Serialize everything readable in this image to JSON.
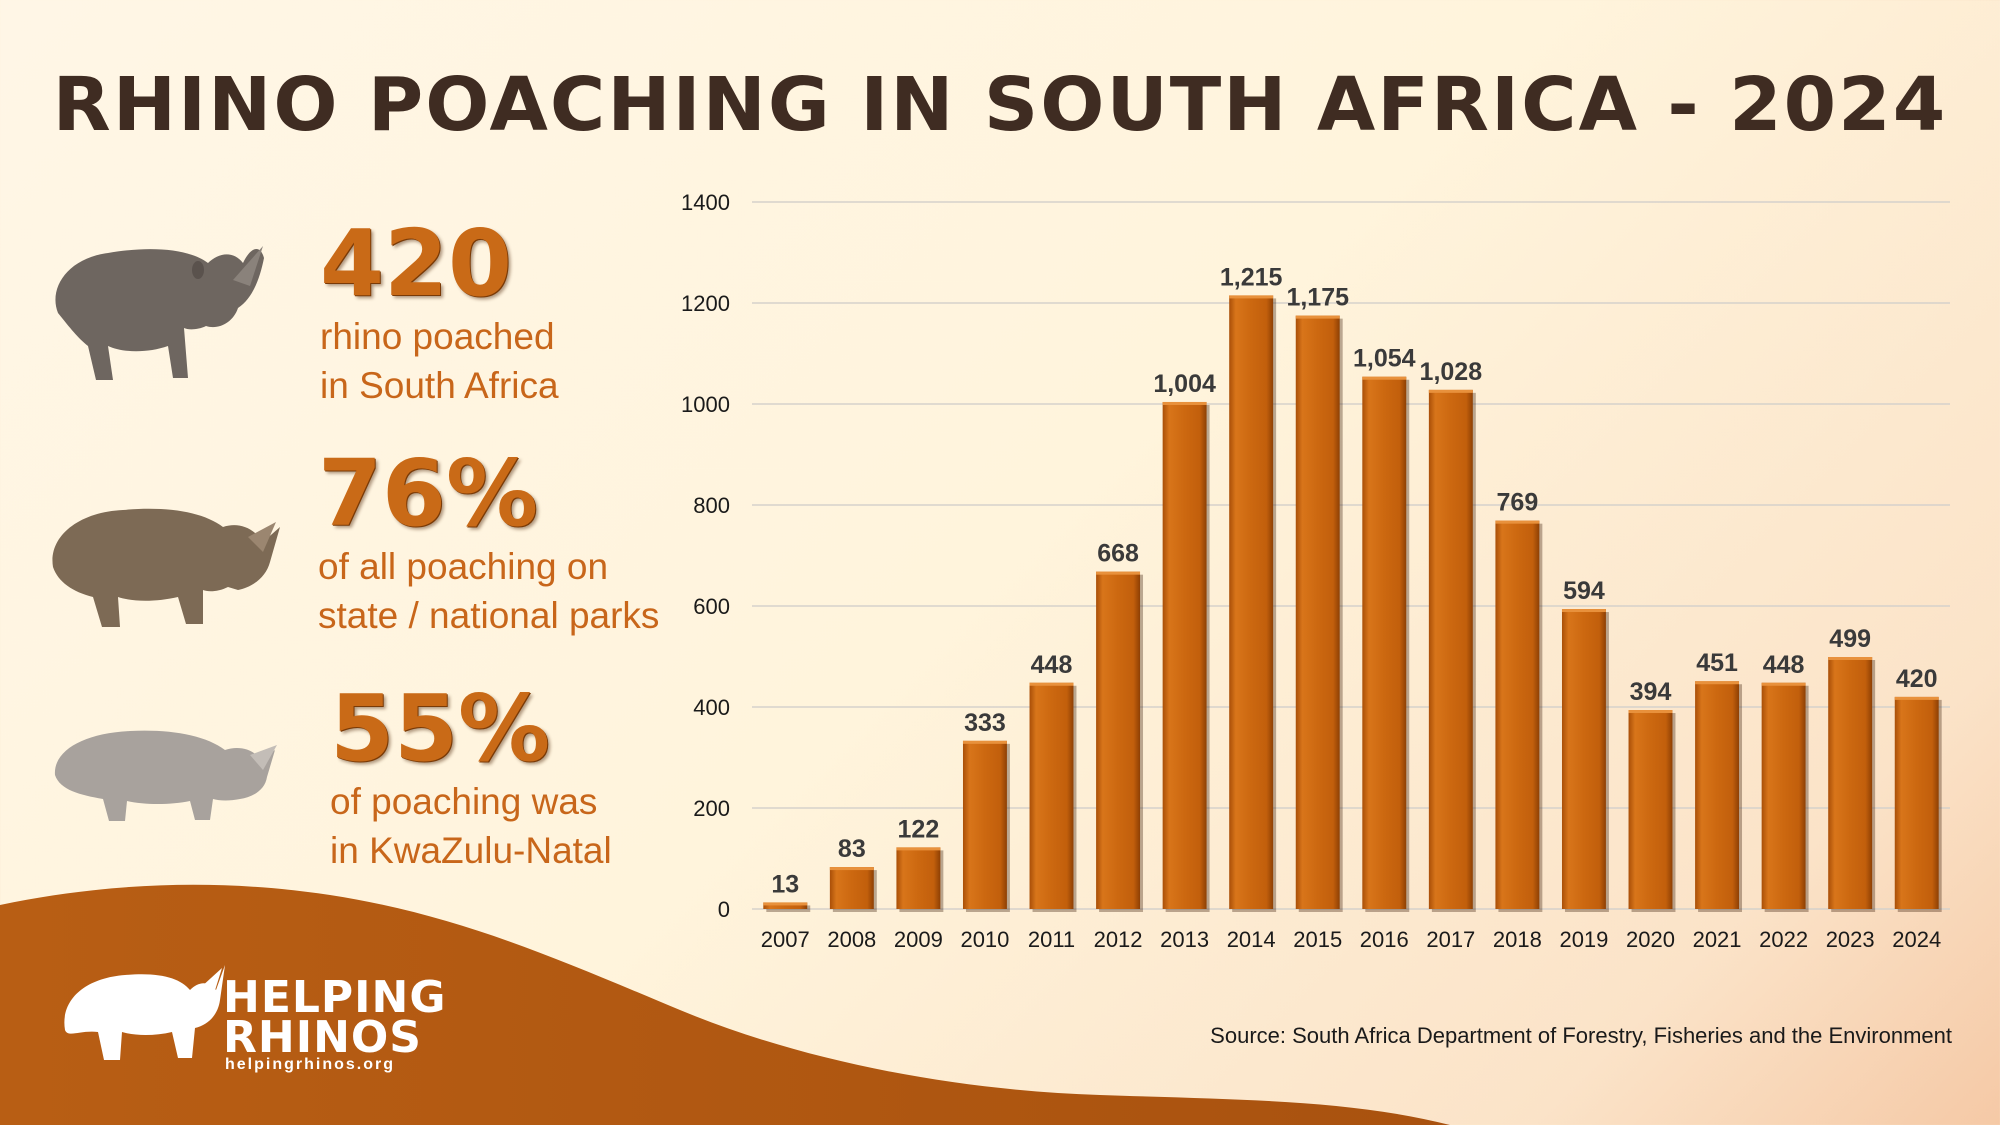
{
  "title": "RHINO POACHING IN SOUTH AFRICA - 2024",
  "stats": [
    {
      "value": "420",
      "line1": "rhino poached",
      "line2": "in South Africa",
      "icon": "black-rhino-icon"
    },
    {
      "value": "76%",
      "line1": "of all poaching on",
      "line2": "state / national parks",
      "icon": "white-rhino-icon"
    },
    {
      "value": "55%",
      "line1": "of poaching was",
      "line2": "in KwaZulu-Natal",
      "icon": "grey-rhino-icon"
    }
  ],
  "chart_data": {
    "type": "bar",
    "categories": [
      "2007",
      "2008",
      "2009",
      "2010",
      "2011",
      "2012",
      "2013",
      "2014",
      "2015",
      "2016",
      "2017",
      "2018",
      "2019",
      "2020",
      "2021",
      "2022",
      "2023",
      "2024"
    ],
    "values": [
      13,
      83,
      122,
      333,
      448,
      668,
      1004,
      1215,
      1175,
      1054,
      1028,
      769,
      594,
      394,
      451,
      448,
      499,
      420
    ],
    "labels": [
      "13",
      "83",
      "122",
      "333",
      "448",
      "668",
      "1,004",
      "1,215",
      "1,175",
      "1,054",
      "1,028",
      "769",
      "594",
      "394",
      "451",
      "448",
      "499",
      "420"
    ],
    "ylim": [
      0,
      1400
    ],
    "yticks": [
      0,
      200,
      400,
      600,
      800,
      1000,
      1200,
      1400
    ],
    "grid": true,
    "bar_color": "#c9660f"
  },
  "source": "Source: South Africa Department of Forestry, Fisheries and the Environment",
  "logo": {
    "line1": "HELPING",
    "line2": "RHINOS",
    "url": "helpingrhinos.org"
  }
}
